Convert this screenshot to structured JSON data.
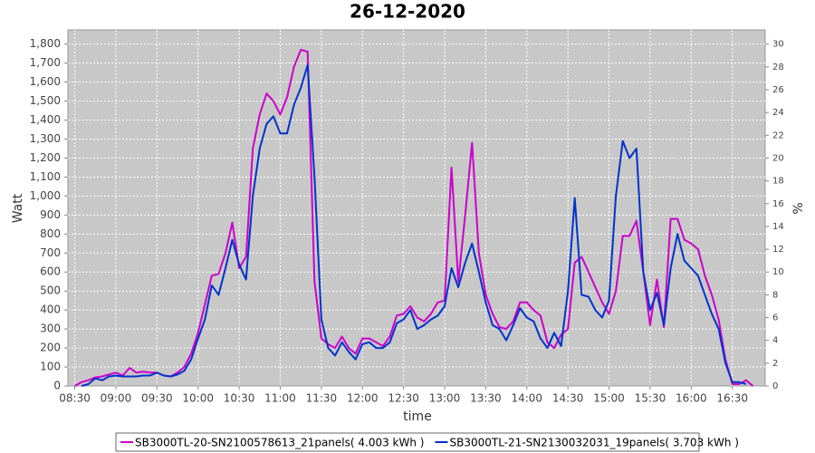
{
  "chart_data": {
    "type": "line",
    "title": "26-12-2020",
    "x_label": "time",
    "y_label": "Watt",
    "y2_label": "%",
    "grid": true,
    "legend": "bottom",
    "x": [
      "08:30",
      "08:35",
      "08:40",
      "08:45",
      "08:50",
      "08:55",
      "09:00",
      "09:05",
      "09:10",
      "09:15",
      "09:20",
      "09:25",
      "09:30",
      "09:35",
      "09:40",
      "09:45",
      "09:50",
      "09:55",
      "10:00",
      "10:05",
      "10:10",
      "10:15",
      "10:20",
      "10:25",
      "10:30",
      "10:35",
      "10:40",
      "10:45",
      "10:50",
      "10:55",
      "11:00",
      "11:05",
      "11:10",
      "11:15",
      "11:20",
      "11:25",
      "11:30",
      "11:35",
      "11:40",
      "11:45",
      "11:50",
      "11:55",
      "12:00",
      "12:05",
      "12:10",
      "12:15",
      "12:20",
      "12:25",
      "12:30",
      "12:35",
      "12:40",
      "12:45",
      "12:50",
      "12:55",
      "13:00",
      "13:05",
      "13:10",
      "13:15",
      "13:20",
      "13:25",
      "13:30",
      "13:35",
      "13:40",
      "13:45",
      "13:50",
      "13:55",
      "14:00",
      "14:05",
      "14:10",
      "14:15",
      "14:20",
      "14:25",
      "14:30",
      "14:35",
      "14:40",
      "14:45",
      "14:50",
      "14:55",
      "15:00",
      "15:05",
      "15:10",
      "15:15",
      "15:20",
      "15:25",
      "15:30",
      "15:35",
      "15:40",
      "15:45",
      "15:50",
      "15:55",
      "16:00",
      "16:05",
      "16:10",
      "16:15",
      "16:20",
      "16:25",
      "16:30",
      "16:35",
      "16:40",
      "16:45"
    ],
    "xlim": [
      "08:25",
      "16:54"
    ],
    "xticks": [
      "08:30",
      "09:00",
      "09:30",
      "10:00",
      "10:30",
      "11:00",
      "11:30",
      "12:00",
      "12:30",
      "13:00",
      "13:30",
      "14:00",
      "14:30",
      "15:00",
      "15:30",
      "16:00",
      "16:30"
    ],
    "ylim": [
      0,
      1875
    ],
    "yticks": [
      0,
      100,
      200,
      300,
      400,
      500,
      600,
      700,
      800,
      900,
      {
        "value": 1000,
        "label": "1,000"
      },
      {
        "value": 1100,
        "label": "1,100"
      },
      {
        "value": 1200,
        "label": "1,200"
      },
      {
        "value": 1300,
        "label": "1,300"
      },
      {
        "value": 1400,
        "label": "1,400"
      },
      {
        "value": 1500,
        "label": "1,500"
      },
      {
        "value": 1600,
        "label": "1,600"
      },
      {
        "value": 1700,
        "label": "1,700"
      },
      {
        "value": 1800,
        "label": "1,800"
      }
    ],
    "y2lim": [
      0,
      31.25
    ],
    "y2ticks": [
      0,
      2,
      4,
      6,
      8,
      10,
      12,
      14,
      16,
      18,
      20,
      22,
      24,
      26,
      28,
      30
    ],
    "series": [
      {
        "name": "SB3000TL-20-SN2100578613_21panels( 4.003 kWh )",
        "color": "#cc00cc",
        "values": [
          0,
          20,
          30,
          45,
          50,
          60,
          70,
          55,
          95,
          70,
          75,
          70,
          70,
          55,
          50,
          70,
          100,
          170,
          280,
          430,
          580,
          590,
          700,
          860,
          620,
          680,
          1250,
          1430,
          1540,
          1500,
          1430,
          1520,
          1680,
          1770,
          1760,
          550,
          250,
          220,
          200,
          260,
          200,
          170,
          250,
          250,
          230,
          210,
          260,
          370,
          380,
          420,
          360,
          340,
          380,
          440,
          450,
          1150,
          550,
          900,
          1280,
          700,
          480,
          380,
          310,
          300,
          340,
          440,
          440,
          400,
          370,
          230,
          200,
          270,
          300,
          650,
          680,
          600,
          520,
          440,
          380,
          500,
          790,
          790,
          870,
          600,
          320,
          560,
          310,
          880,
          880,
          770,
          750,
          720,
          580,
          480,
          350,
          140,
          10,
          10,
          30,
          0
        ]
      },
      {
        "name": "SB3000TL-21-SN2130032031_19panels( 3.703 kWh )",
        "color": "#0033cc",
        "values": [
          null,
          0,
          10,
          40,
          30,
          50,
          55,
          50,
          50,
          50,
          55,
          55,
          70,
          55,
          50,
          60,
          80,
          140,
          250,
          350,
          530,
          480,
          620,
          770,
          640,
          560,
          1000,
          1250,
          1380,
          1420,
          1330,
          1330,
          1480,
          1570,
          1690,
          1100,
          350,
          200,
          160,
          230,
          180,
          140,
          220,
          230,
          200,
          200,
          230,
          330,
          350,
          400,
          300,
          320,
          350,
          370,
          420,
          620,
          520,
          650,
          750,
          600,
          440,
          320,
          300,
          240,
          320,
          410,
          360,
          340,
          250,
          200,
          280,
          210,
          500,
          990,
          480,
          470,
          400,
          360,
          450,
          1000,
          1290,
          1200,
          1250,
          600,
          400,
          490,
          320,
          620,
          800,
          660,
          620,
          580,
          480,
          380,
          300,
          120,
          20,
          20,
          10,
          null
        ]
      }
    ]
  }
}
